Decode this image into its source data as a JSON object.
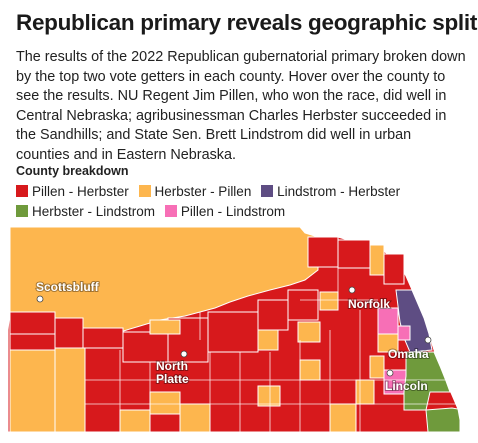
{
  "title": "Republican primary reveals geographic split",
  "description": "The results of the 2022 Republican gubernatorial primary broken down by the top two vote getters in each county. Hover over the county to see the results. NU Regent Jim Pillen, who won the race, did well in Central Nebraska; agribusinessman Charles Herbster succeeded in the Sandhills; and State Sen. Brett Lindstrom did well in urban counties and in Eastern Nebraska.",
  "legend": {
    "title": "County breakdown",
    "items": [
      {
        "label": "Pillen - Herbster",
        "color": "#d7191c"
      },
      {
        "label": "Herbster - Pillen",
        "color": "#fdb64e"
      },
      {
        "label": "Lindstrom - Herbster",
        "color": "#5e4d83"
      },
      {
        "label": "Herbster - Lindstrom",
        "color": "#6f9a3c"
      },
      {
        "label": "Pillen - Lindstrom",
        "color": "#f76fb6"
      }
    ]
  },
  "cities": [
    {
      "name": "Scottsbluff"
    },
    {
      "name": "Norfolk"
    },
    {
      "name": "North Platte"
    },
    {
      "name": "Omaha"
    },
    {
      "name": "Lincoln"
    }
  ]
}
